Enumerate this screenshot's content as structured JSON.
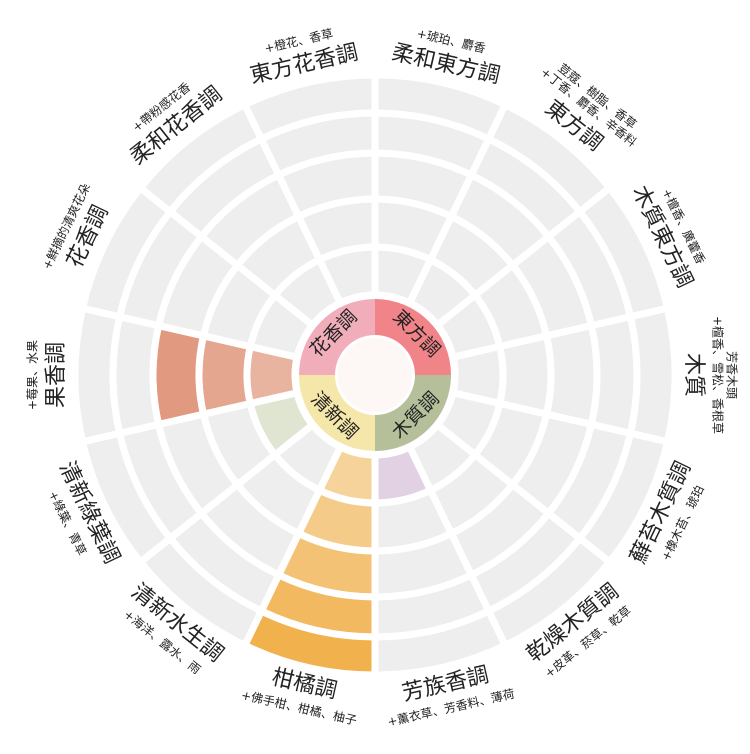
{
  "wheel": {
    "inner": [
      {
        "label": "東方調",
        "color": "#ef6f73"
      },
      {
        "label": "木質調",
        "color": "#a8b58a"
      },
      {
        "label": "清新調",
        "color": "#f3e39a"
      },
      {
        "label": "花香調",
        "color": "#ef9fae"
      }
    ],
    "sectors": [
      {
        "name": "柔和東方調",
        "notes": [
          "+琥珀、麝香"
        ],
        "level": 0,
        "color": "#cccccc"
      },
      {
        "name": "東方調",
        "notes": [
          "+丁香、麝香、辛香料",
          "荳蔻、樹脂、香草"
        ],
        "level": 0,
        "color": "#cccccc"
      },
      {
        "name": "木質東方調",
        "notes": [
          "+檀香、廣藿香"
        ],
        "level": 0,
        "color": "#cccccc"
      },
      {
        "name": "木質",
        "notes": [
          "+檀香、雪松、香根草",
          "芳香木頭"
        ],
        "level": 0,
        "color": "#cccccc"
      },
      {
        "name": "蘚苔木質調",
        "notes": [
          "+橡木苔、琥珀"
        ],
        "level": 0,
        "color": "#cccccc"
      },
      {
        "name": "乾燥木質調",
        "notes": [
          "+皮革、菸草、乾草"
        ],
        "level": 0,
        "color": "#cccccc"
      },
      {
        "name": "芳族香調",
        "notes": [
          "+薰衣草、芳香料、薄荷"
        ],
        "level": 1,
        "color": "#cdb3cf"
      },
      {
        "name": "柑橘調",
        "notes": [
          "+佛手柑、柑橘、柚子"
        ],
        "level": 5,
        "color": "#efa83a"
      },
      {
        "name": "清新水生調",
        "notes": [
          "+海洋、露水、雨"
        ],
        "level": 0,
        "color": "#cccccc"
      },
      {
        "name": "清新綠葉調",
        "notes": [
          "+綠葉、青草"
        ],
        "level": 1,
        "color": "#c9d3b0"
      },
      {
        "name": "果香調",
        "notes": [
          "+莓果、水果"
        ],
        "level": 3,
        "color": "#d9805f"
      },
      {
        "name": "花香調",
        "notes": [
          "+鮮摘的清爽花朵"
        ],
        "level": 0,
        "color": "#cccccc"
      },
      {
        "name": "柔和花香調",
        "notes": [
          "+帶粉感花香"
        ],
        "level": 0,
        "color": "#cccccc"
      },
      {
        "name": "東方花香調",
        "notes": [
          "+橙花、香草"
        ],
        "level": 0,
        "color": "#cccccc"
      }
    ]
  }
}
